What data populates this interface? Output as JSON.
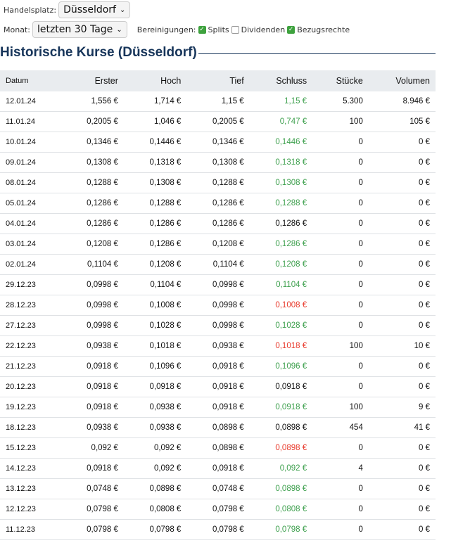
{
  "controls": {
    "exchange_label": "Handelsplatz:",
    "exchange_value": "Düsseldorf",
    "month_label": "Monat:",
    "month_value": "letzten 30 Tage",
    "adjust_label": "Bereinigungen:",
    "adjust": [
      {
        "label": "Splits",
        "checked": true
      },
      {
        "label": "Dividenden",
        "checked": false
      },
      {
        "label": "Bezugsrechte",
        "checked": true
      }
    ]
  },
  "title": "Historische Kurse (Düsseldorf)",
  "colors": {
    "up": "#3ea04e",
    "down": "#e8382a",
    "title": "#17355a"
  },
  "table": {
    "headers": [
      "Datum",
      "Erster",
      "Hoch",
      "Tief",
      "Schluss",
      "Stücke",
      "Volumen"
    ],
    "rows": [
      [
        "12.01.24",
        "1,556 €",
        "1,714 €",
        "1,15 €",
        "1,15 €",
        "5.300",
        "8.946 €",
        "up"
      ],
      [
        "11.01.24",
        "0,2005 €",
        "1,046 €",
        "0,2005 €",
        "0,747 €",
        "100",
        "105 €",
        "up"
      ],
      [
        "10.01.24",
        "0,1346 €",
        "0,1446 €",
        "0,1346 €",
        "0,1446 €",
        "0",
        "0 €",
        "up"
      ],
      [
        "09.01.24",
        "0,1308 €",
        "0,1318 €",
        "0,1308 €",
        "0,1318 €",
        "0",
        "0 €",
        "up"
      ],
      [
        "08.01.24",
        "0,1288 €",
        "0,1308 €",
        "0,1288 €",
        "0,1308 €",
        "0",
        "0 €",
        "up"
      ],
      [
        "05.01.24",
        "0,1286 €",
        "0,1288 €",
        "0,1286 €",
        "0,1288 €",
        "0",
        "0 €",
        "up"
      ],
      [
        "04.01.24",
        "0,1286 €",
        "0,1286 €",
        "0,1286 €",
        "0,1286 €",
        "0",
        "0 €",
        "flat"
      ],
      [
        "03.01.24",
        "0,1208 €",
        "0,1286 €",
        "0,1208 €",
        "0,1286 €",
        "0",
        "0 €",
        "up"
      ],
      [
        "02.01.24",
        "0,1104 €",
        "0,1208 €",
        "0,1104 €",
        "0,1208 €",
        "0",
        "0 €",
        "up"
      ],
      [
        "29.12.23",
        "0,0998 €",
        "0,1104 €",
        "0,0998 €",
        "0,1104 €",
        "0",
        "0 €",
        "up"
      ],
      [
        "28.12.23",
        "0,0998 €",
        "0,1008 €",
        "0,0998 €",
        "0,1008 €",
        "0",
        "0 €",
        "down"
      ],
      [
        "27.12.23",
        "0,0998 €",
        "0,1028 €",
        "0,0998 €",
        "0,1028 €",
        "0",
        "0 €",
        "up"
      ],
      [
        "22.12.23",
        "0,0938 €",
        "0,1018 €",
        "0,0938 €",
        "0,1018 €",
        "100",
        "10 €",
        "down"
      ],
      [
        "21.12.23",
        "0,0918 €",
        "0,1096 €",
        "0,0918 €",
        "0,1096 €",
        "0",
        "0 €",
        "up"
      ],
      [
        "20.12.23",
        "0,0918 €",
        "0,0918 €",
        "0,0918 €",
        "0,0918 €",
        "0",
        "0 €",
        "flat"
      ],
      [
        "19.12.23",
        "0,0918 €",
        "0,0938 €",
        "0,0918 €",
        "0,0918 €",
        "100",
        "9 €",
        "up"
      ],
      [
        "18.12.23",
        "0,0938 €",
        "0,0938 €",
        "0,0898 €",
        "0,0898 €",
        "454",
        "41 €",
        "flat"
      ],
      [
        "15.12.23",
        "0,092 €",
        "0,092 €",
        "0,0898 €",
        "0,0898 €",
        "0",
        "0 €",
        "down"
      ],
      [
        "14.12.23",
        "0,0918 €",
        "0,092 €",
        "0,0918 €",
        "0,092 €",
        "4",
        "0 €",
        "up"
      ],
      [
        "13.12.23",
        "0,0748 €",
        "0,0898 €",
        "0,0748 €",
        "0,0898 €",
        "0",
        "0 €",
        "up"
      ],
      [
        "12.12.23",
        "0,0798 €",
        "0,0808 €",
        "0,0798 €",
        "0,0808 €",
        "0",
        "0 €",
        "up"
      ],
      [
        "11.12.23",
        "0,0798 €",
        "0,0798 €",
        "0,0798 €",
        "0,0798 €",
        "0",
        "0 €",
        "up"
      ]
    ]
  }
}
